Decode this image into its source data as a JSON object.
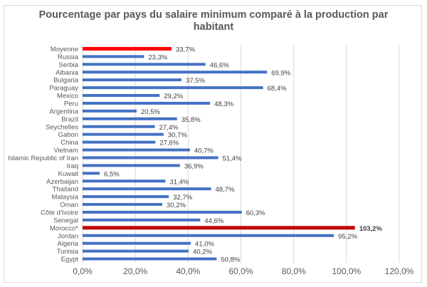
{
  "chart_data": {
    "type": "bar",
    "orientation": "horizontal",
    "title": "Pourcentage par pays du salaire minimum comparé à la production par habitant",
    "title_lines": [
      "Pourcentage par pays du salaire minimum comparé à la production par",
      "habitant"
    ],
    "categories": [
      "Moyenne",
      "Russia",
      "Serbia",
      "Albania",
      "Bulgaria",
      "Paraguay",
      "Mexico",
      "Peru",
      "Argentina",
      "Brazil",
      "Seychelles",
      "Gabon",
      "China",
      "Vietnam",
      "Islamic Republic of Iran",
      "Iraq",
      "Kuwait",
      "Azerbaijan",
      "Thailand",
      "Malaysia",
      "Oman",
      "Côte d'Ivoire",
      "Senegal",
      "Morocco*",
      "Jordan",
      "Algeria",
      "Tunisia",
      "Egypt"
    ],
    "values": [
      33.7,
      23.3,
      46.6,
      69.9,
      37.5,
      68.4,
      29.2,
      48.3,
      20.5,
      35.8,
      27.4,
      30.7,
      27.6,
      40.7,
      51.4,
      36.9,
      6.5,
      31.4,
      48.7,
      32.7,
      30.2,
      60.3,
      44.6,
      103.2,
      95.2,
      41.0,
      40.2,
      50.8
    ],
    "data_labels": [
      "33,7%",
      "23,3%",
      "46,6%",
      "69,9%",
      "37,5%",
      "68,4%",
      "29,2%",
      "48,3%",
      "20,5%",
      "35,8%",
      "27,4%",
      "30,7%",
      "27,6%",
      "40,7%",
      "51,4%",
      "36,9%",
      "6,5%",
      "31,4%",
      "48,7%",
      "32,7%",
      "30,2%",
      "60,3%",
      "44,6%",
      "103,2%",
      "95,2%",
      "41,0%",
      "40,2%",
      "50,8%"
    ],
    "highlight": {
      "Moyenne": "#ff0000",
      "Morocco*": "#c00000"
    },
    "bar_color": "#4472c4",
    "xlim": [
      0,
      120
    ],
    "x_ticks": [
      "0,0%",
      "20,0%",
      "40,0%",
      "60,0%",
      "80,0%",
      "100,0%",
      "120,0%"
    ],
    "grid": true,
    "xlabel": "",
    "ylabel": ""
  }
}
